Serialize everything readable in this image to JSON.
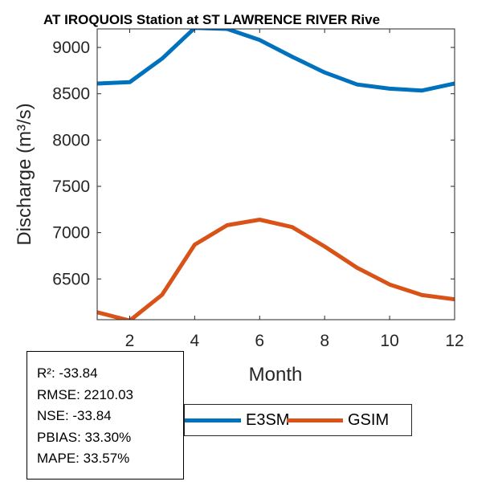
{
  "chart_data": {
    "type": "line",
    "title": "AT IROQUOIS  Station at  ST LAWRENCE RIVER  Rive",
    "xlabel": "Month",
    "ylabel": "Discharge (m³/s)",
    "xlim": [
      1,
      12
    ],
    "ylim": [
      6060,
      9200
    ],
    "xticks": [
      2,
      4,
      6,
      8,
      10,
      12
    ],
    "yticks": [
      6500,
      7000,
      7500,
      8000,
      8500,
      9000
    ],
    "grid": false,
    "legend_placement": "bottom-right",
    "x": [
      1,
      2,
      3,
      4,
      5,
      6,
      7,
      8,
      9,
      10,
      11,
      12
    ],
    "series": [
      {
        "name": "E3SM",
        "color": "#0072BD",
        "values": [
          8610,
          8625,
          8880,
          9210,
          9200,
          9080,
          8900,
          8730,
          8600,
          8555,
          8535,
          8610
        ]
      },
      {
        "name": "GSIM",
        "color": "#D95319",
        "values": [
          6140,
          6050,
          6330,
          6870,
          7080,
          7140,
          7060,
          6850,
          6620,
          6440,
          6325,
          6280
        ]
      }
    ]
  },
  "stats": {
    "r2": "R²: -33.84",
    "rmse": "RMSE: 2210.03",
    "nse": "NSE: -33.84",
    "pbias": "PBIAS: 33.30%",
    "mape": "MAPE: 33.57%"
  }
}
